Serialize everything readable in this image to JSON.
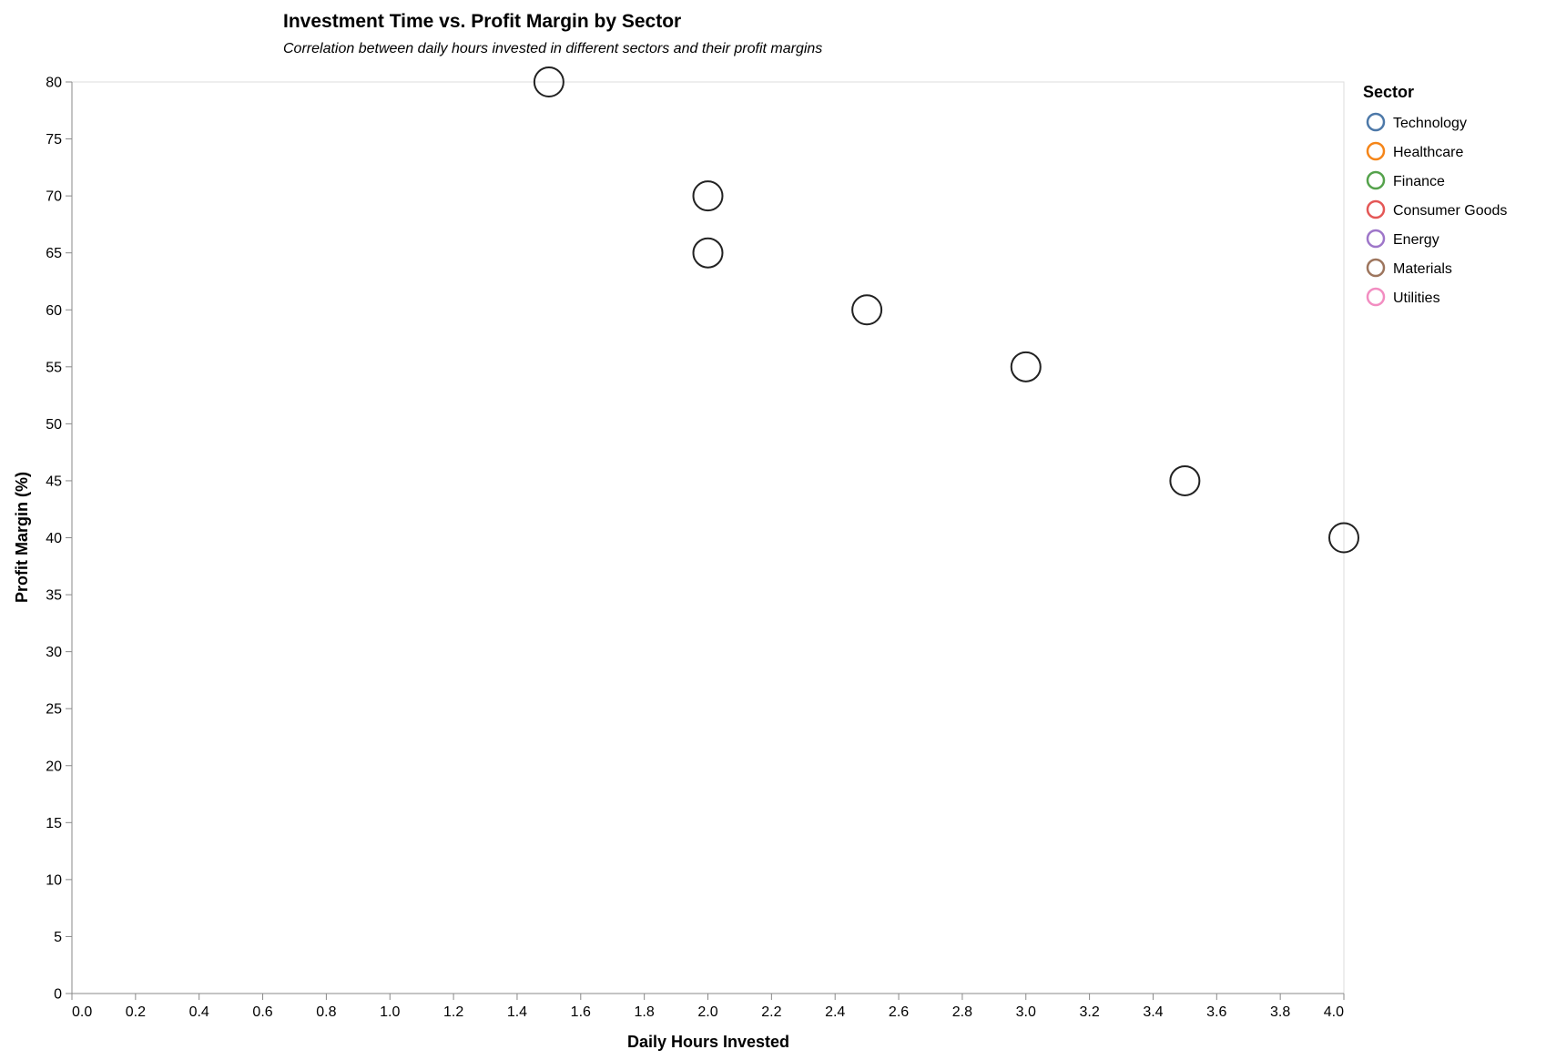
{
  "chart_data": {
    "type": "scatter",
    "title": "Investment Time vs. Profit Margin by Sector",
    "subtitle": "Correlation between daily hours invested in different sectors and their profit margins",
    "xlabel": "Daily Hours Invested",
    "ylabel": "Profit Margin (%)",
    "xlim": [
      0,
      4.0
    ],
    "ylim": [
      0,
      80
    ],
    "x_ticks": [
      "0.0",
      "0.2",
      "0.4",
      "0.6",
      "0.8",
      "1.0",
      "1.2",
      "1.4",
      "1.6",
      "1.8",
      "2.0",
      "2.2",
      "2.4",
      "2.6",
      "2.8",
      "3.0",
      "3.2",
      "3.4",
      "3.6",
      "3.8",
      "4.0"
    ],
    "y_ticks": [
      "0",
      "5",
      "10",
      "15",
      "20",
      "25",
      "30",
      "35",
      "40",
      "45",
      "50",
      "55",
      "60",
      "65",
      "70",
      "75",
      "80"
    ],
    "legend_title": "Sector",
    "legend_position": "right",
    "series": [
      {
        "name": "Technology",
        "color": "#4c78a8"
      },
      {
        "name": "Healthcare",
        "color": "#f58518"
      },
      {
        "name": "Finance",
        "color": "#54a24b"
      },
      {
        "name": "Consumer Goods",
        "color": "#e45756"
      },
      {
        "name": "Energy",
        "color": "#9e76c9"
      },
      {
        "name": "Materials",
        "color": "#9d755d"
      },
      {
        "name": "Utilities",
        "color": "#f28dc1"
      }
    ],
    "points": [
      {
        "x": 1.5,
        "y": 80
      },
      {
        "x": 2.0,
        "y": 70
      },
      {
        "x": 2.0,
        "y": 65
      },
      {
        "x": 2.5,
        "y": 60
      },
      {
        "x": 3.0,
        "y": 55
      },
      {
        "x": 3.5,
        "y": 45
      },
      {
        "x": 4.0,
        "y": 40
      }
    ],
    "point_stroke": "#222222",
    "axis_color": "#888888",
    "frame_color": "#dddddd"
  }
}
